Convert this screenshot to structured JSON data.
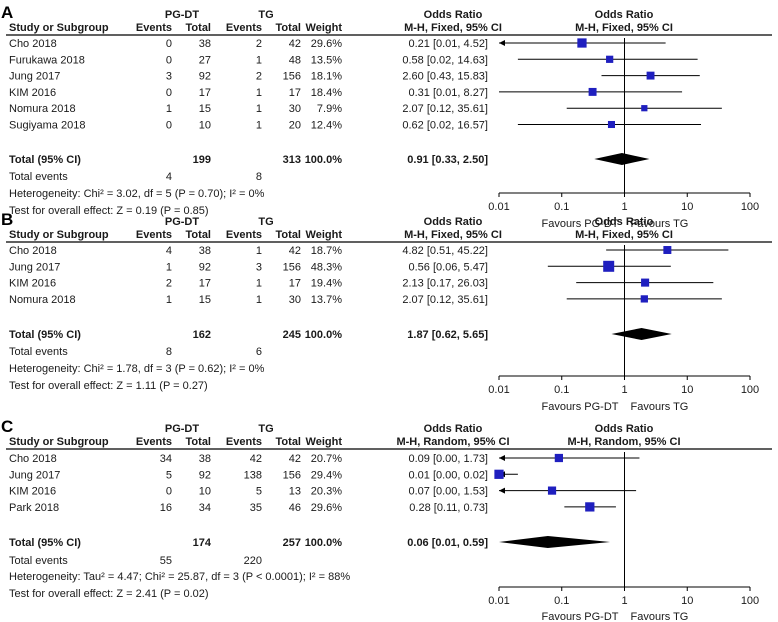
{
  "chart_data": [
    {
      "type": "forest",
      "panel_label": "A",
      "group1": "PG-DT",
      "group2": "TG",
      "headers": {
        "study": "Study or Subgroup",
        "events": "Events",
        "total": "Total",
        "weight": "Weight",
        "or": "Odds Ratio",
        "method": "M-H, Fixed, 95% CI"
      },
      "studies": [
        {
          "name": "Cho 2018",
          "e1": "0",
          "t1": "38",
          "e2": "2",
          "t2": "42",
          "weight": "29.6%",
          "ci_text": "0.21 [0.01, 4.52]",
          "or": 0.21,
          "lo": 0.01,
          "hi": 4.52,
          "w": 29.6
        },
        {
          "name": "Furukawa 2018",
          "e1": "0",
          "t1": "27",
          "e2": "1",
          "t2": "48",
          "weight": "13.5%",
          "ci_text": "0.58 [0.02, 14.63]",
          "or": 0.58,
          "lo": 0.02,
          "hi": 14.63,
          "w": 13.5
        },
        {
          "name": "Jung 2017",
          "e1": "3",
          "t1": "92",
          "e2": "2",
          "t2": "156",
          "weight": "18.1%",
          "ci_text": "2.60 [0.43, 15.83]",
          "or": 2.6,
          "lo": 0.43,
          "hi": 15.83,
          "w": 18.1
        },
        {
          "name": "KIM 2016",
          "e1": "0",
          "t1": "17",
          "e2": "1",
          "t2": "17",
          "weight": "18.4%",
          "ci_text": "0.31 [0.01, 8.27]",
          "or": 0.31,
          "lo": 0.01,
          "hi": 8.27,
          "w": 18.4
        },
        {
          "name": "Nomura 2018",
          "e1": "1",
          "t1": "15",
          "e2": "1",
          "t2": "30",
          "weight": "7.9%",
          "ci_text": "2.07 [0.12, 35.61]",
          "or": 2.07,
          "lo": 0.12,
          "hi": 35.61,
          "w": 7.9
        },
        {
          "name": "Sugiyama 2018",
          "e1": "0",
          "t1": "10",
          "e2": "1",
          "t2": "20",
          "weight": "12.4%",
          "ci_text": "0.62 [0.02, 16.57]",
          "or": 0.62,
          "lo": 0.02,
          "hi": 16.57,
          "w": 12.4
        }
      ],
      "total": {
        "label": "Total (95% CI)",
        "t1": "199",
        "t2": "313",
        "weight": "100.0%",
        "ci_text": "0.91 [0.33, 2.50]",
        "or": 0.91,
        "lo": 0.33,
        "hi": 2.5
      },
      "total_events": {
        "label": "Total events",
        "e1": "4",
        "e2": "8"
      },
      "heterogeneity": "Heterogeneity: Chi² = 3.02, df = 5 (P = 0.70); I² = 0%",
      "overall_effect": "Test for overall effect: Z = 0.19 (P = 0.85)",
      "axis": {
        "ticks": [
          0.01,
          0.1,
          1,
          10,
          100
        ],
        "tick_labels": [
          "0.01",
          "0.1",
          "1",
          "10",
          "100"
        ],
        "xlim": [
          0.01,
          100
        ],
        "scale": "log"
      },
      "favours_left": "Favours PG-DT",
      "favours_right": "Favours TG"
    },
    {
      "type": "forest",
      "panel_label": "B",
      "group1": "PG-DT",
      "group2": "TG",
      "headers": {
        "study": "Study or Subgroup",
        "events": "Events",
        "total": "Total",
        "weight": "Weight",
        "or": "Odds Ratio",
        "method": "M-H, Fixed, 95% CI"
      },
      "studies": [
        {
          "name": "Cho 2018",
          "e1": "4",
          "t1": "38",
          "e2": "1",
          "t2": "42",
          "weight": "18.7%",
          "ci_text": "4.82 [0.51, 45.22]",
          "or": 4.82,
          "lo": 0.51,
          "hi": 45.22,
          "w": 18.7
        },
        {
          "name": "Jung 2017",
          "e1": "1",
          "t1": "92",
          "e2": "3",
          "t2": "156",
          "weight": "48.3%",
          "ci_text": "0.56 [0.06, 5.47]",
          "or": 0.56,
          "lo": 0.06,
          "hi": 5.47,
          "w": 48.3
        },
        {
          "name": "KIM 2016",
          "e1": "2",
          "t1": "17",
          "e2": "1",
          "t2": "17",
          "weight": "19.4%",
          "ci_text": "2.13 [0.17, 26.03]",
          "or": 2.13,
          "lo": 0.17,
          "hi": 26.03,
          "w": 19.4
        },
        {
          "name": "Nomura 2018",
          "e1": "1",
          "t1": "15",
          "e2": "1",
          "t2": "30",
          "weight": "13.7%",
          "ci_text": "2.07 [0.12, 35.61]",
          "or": 2.07,
          "lo": 0.12,
          "hi": 35.61,
          "w": 13.7
        }
      ],
      "total": {
        "label": "Total (95% CI)",
        "t1": "162",
        "t2": "245",
        "weight": "100.0%",
        "ci_text": "1.87 [0.62, 5.65]",
        "or": 1.87,
        "lo": 0.62,
        "hi": 5.65
      },
      "total_events": {
        "label": "Total events",
        "e1": "8",
        "e2": "6"
      },
      "heterogeneity": "Heterogeneity: Chi² = 1.78, df = 3 (P = 0.62); I² = 0%",
      "overall_effect": "Test for overall effect: Z = 1.11 (P = 0.27)",
      "axis": {
        "ticks": [
          0.01,
          0.1,
          1,
          10,
          100
        ],
        "tick_labels": [
          "0.01",
          "0.1",
          "1",
          "10",
          "100"
        ],
        "xlim": [
          0.01,
          100
        ],
        "scale": "log"
      },
      "favours_left": "Favours PG-DT",
      "favours_right": "Favours TG"
    },
    {
      "type": "forest",
      "panel_label": "C",
      "group1": "PG-DT",
      "group2": "TG",
      "headers": {
        "study": "Study or Subgroup",
        "events": "Events",
        "total": "Total",
        "weight": "Weight",
        "or": "Odds Ratio",
        "method": "M-H, Random, 95% CI"
      },
      "studies": [
        {
          "name": "Cho 2018",
          "e1": "34",
          "t1": "38",
          "e2": "42",
          "t2": "42",
          "weight": "20.7%",
          "ci_text": "0.09 [0.00, 1.73]",
          "or": 0.09,
          "lo": 0.005,
          "hi": 1.73,
          "w": 20.7
        },
        {
          "name": "Jung 2017",
          "e1": "5",
          "t1": "92",
          "e2": "138",
          "t2": "156",
          "weight": "29.4%",
          "ci_text": "0.01 [0.00, 0.02]",
          "or": 0.01,
          "lo": 0.005,
          "hi": 0.02,
          "w": 29.4
        },
        {
          "name": "KIM 2016",
          "e1": "0",
          "t1": "10",
          "e2": "5",
          "t2": "13",
          "weight": "20.3%",
          "ci_text": "0.07 [0.00, 1.53]",
          "or": 0.07,
          "lo": 0.005,
          "hi": 1.53,
          "w": 20.3
        },
        {
          "name": "Park 2018",
          "e1": "16",
          "t1": "34",
          "e2": "35",
          "t2": "46",
          "weight": "29.6%",
          "ci_text": "0.28 [0.11, 0.73]",
          "or": 0.28,
          "lo": 0.11,
          "hi": 0.73,
          "w": 29.6
        }
      ],
      "total": {
        "label": "Total (95% CI)",
        "t1": "174",
        "t2": "257",
        "weight": "100.0%",
        "ci_text": "0.06 [0.01, 0.59]",
        "or": 0.06,
        "lo": 0.006,
        "hi": 0.59
      },
      "total_events": {
        "label": "Total events",
        "e1": "55",
        "e2": "220"
      },
      "heterogeneity": "Heterogeneity: Tau² = 4.47; Chi² = 25.87, df = 3 (P < 0.0001); I² = 88%",
      "overall_effect": "Test for overall effect: Z = 2.41 (P = 0.02)",
      "axis": {
        "ticks": [
          0.01,
          0.1,
          1,
          10,
          100
        ],
        "tick_labels": [
          "0.01",
          "0.1",
          "1",
          "10",
          "100"
        ],
        "xlim": [
          0.01,
          100
        ],
        "scale": "log"
      },
      "favours_left": "Favours PG-DT",
      "favours_right": "Favours TG"
    }
  ],
  "colors": {
    "point": "#1f1fbf",
    "diamond": "#000000",
    "line": "#000000",
    "text": "#1a1a1a"
  }
}
